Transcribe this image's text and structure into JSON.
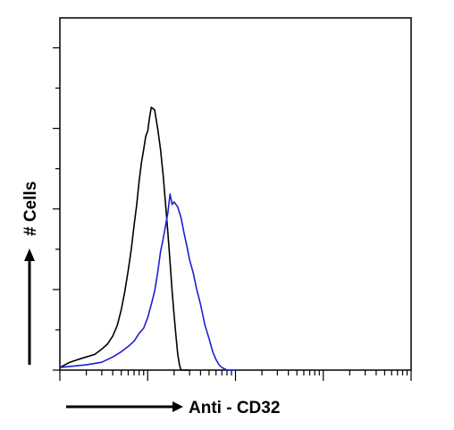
{
  "chart_data": {
    "type": "line",
    "xlabel": "Anti - CD32",
    "ylabel": "# Cells",
    "x_scale": "log",
    "xlim": [
      1,
      10000
    ],
    "ylim": [
      0,
      100
    ],
    "grid": false,
    "series": [
      {
        "color": "#000000",
        "x": [
          1,
          1.3,
          1.6,
          2,
          2.5,
          3,
          3.5,
          4,
          4.5,
          5,
          5.5,
          6,
          6.5,
          7,
          7.5,
          8,
          8.5,
          9,
          9.5,
          10,
          10.5,
          11,
          12,
          13,
          14,
          15,
          16,
          17,
          18,
          19,
          20,
          21,
          22,
          23,
          24,
          26,
          30
        ],
        "y": [
          1,
          3,
          4,
          5,
          6,
          8,
          10,
          13,
          17,
          23,
          30,
          38,
          46,
          55,
          63,
          72,
          79,
          84,
          89,
          91,
          96,
          100,
          99,
          92,
          84,
          74,
          63,
          52,
          41,
          30,
          21,
          13,
          6,
          2,
          0,
          0,
          0
        ]
      },
      {
        "color": "#1f1fd0",
        "x": [
          1,
          2,
          3,
          4,
          5,
          6,
          7,
          8,
          9,
          10,
          11,
          12,
          13,
          14,
          15,
          16,
          17,
          18,
          19,
          20,
          22,
          24,
          26,
          28,
          30,
          33,
          36,
          40,
          45,
          50,
          55,
          60,
          65,
          70,
          80,
          100
        ],
        "y": [
          1,
          2,
          3,
          5,
          7,
          9,
          11,
          14,
          16,
          20,
          25,
          30,
          37,
          45,
          50,
          55,
          60,
          67,
          63,
          64,
          62,
          58,
          52,
          47,
          42,
          37,
          31,
          25,
          17,
          12,
          7,
          4,
          2,
          1,
          0,
          0
        ]
      }
    ]
  }
}
